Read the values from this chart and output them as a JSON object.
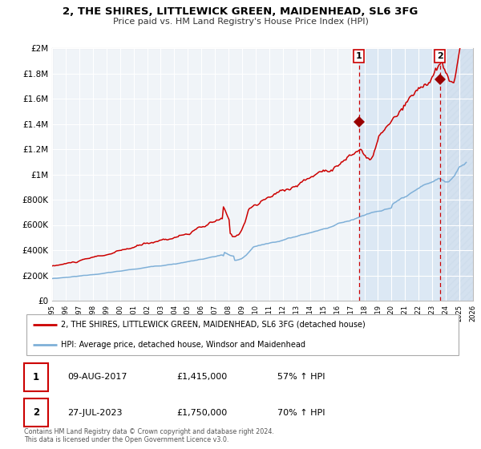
{
  "title": "2, THE SHIRES, LITTLEWICK GREEN, MAIDENHEAD, SL6 3FG",
  "subtitle": "Price paid vs. HM Land Registry's House Price Index (HPI)",
  "xmin": 1995,
  "xmax": 2026,
  "ymin": 0,
  "ymax": 2000000,
  "yticks": [
    0,
    200000,
    400000,
    600000,
    800000,
    1000000,
    1200000,
    1400000,
    1600000,
    1800000,
    2000000
  ],
  "ytick_labels": [
    "£0",
    "£200K",
    "£400K",
    "£600K",
    "£800K",
    "£1M",
    "£1.2M",
    "£1.4M",
    "£1.6M",
    "£1.8M",
    "£2M"
  ],
  "xticks": [
    1995,
    1996,
    1997,
    1998,
    1999,
    2000,
    2001,
    2002,
    2003,
    2004,
    2005,
    2006,
    2007,
    2008,
    2009,
    2010,
    2011,
    2012,
    2013,
    2014,
    2015,
    2016,
    2017,
    2018,
    2019,
    2020,
    2021,
    2022,
    2023,
    2024,
    2025,
    2026
  ],
  "red_line_color": "#cc0000",
  "blue_line_color": "#7fb0d8",
  "marker1_x": 2017.6,
  "marker1_y": 1415000,
  "marker2_x": 2023.57,
  "marker2_y": 1750000,
  "vline1_x": 2017.6,
  "vline2_x": 2023.57,
  "legend1": "2, THE SHIRES, LITTLEWICK GREEN, MAIDENHEAD, SL6 3FG (detached house)",
  "legend2": "HPI: Average price, detached house, Windsor and Maidenhead",
  "table_row1_date": "09-AUG-2017",
  "table_row1_price": "£1,415,000",
  "table_row1_hpi": "57% ↑ HPI",
  "table_row2_date": "27-JUL-2023",
  "table_row2_price": "£1,750,000",
  "table_row2_hpi": "70% ↑ HPI",
  "footnote": "Contains HM Land Registry data © Crown copyright and database right 2024.\nThis data is licensed under the Open Government Licence v3.0.",
  "bg_color": "#ffffff",
  "plot_bg_color": "#f0f4f8",
  "grid_color": "#d8d8d8",
  "shaded_region_color": "#dce8f4",
  "hatch_region_color": "#c8d8e8"
}
